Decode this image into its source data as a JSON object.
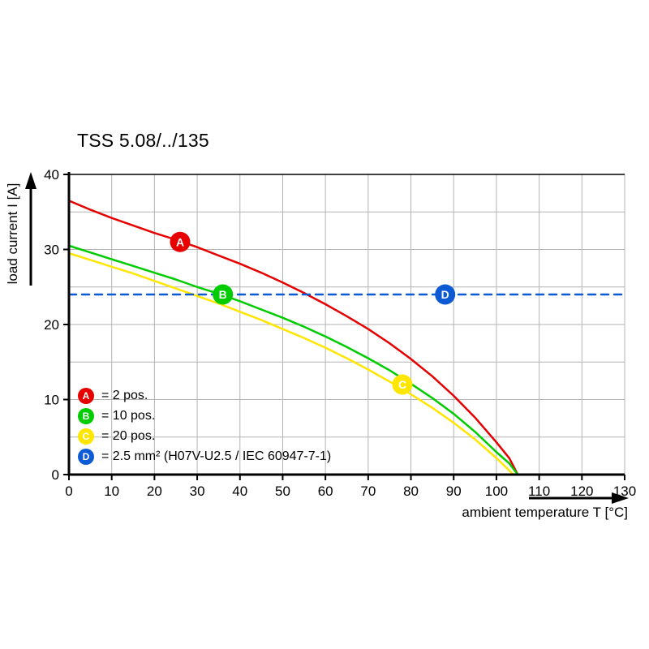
{
  "chart_data": {
    "type": "line",
    "title": "TSS 5.08/../135",
    "xlabel": "ambient temperature T [°C]",
    "ylabel": "load current I [A]",
    "xlim": [
      0,
      130
    ],
    "ylim": [
      0,
      40
    ],
    "x_ticks": [
      0,
      10,
      20,
      30,
      40,
      50,
      60,
      70,
      80,
      90,
      100,
      110,
      120,
      130
    ],
    "y_ticks": [
      0,
      10,
      20,
      30,
      40
    ],
    "x_grid": [
      10,
      20,
      30,
      40,
      50,
      60,
      70,
      80,
      90,
      100,
      110,
      120,
      130
    ],
    "y_grid": [
      5,
      10,
      15,
      20,
      25,
      30,
      35
    ],
    "grid": true,
    "legend_position": "bottom-left-inside",
    "colors": {
      "grid": "#b3b3b3",
      "axis": "#000000",
      "background": "#ffffff"
    },
    "series": [
      {
        "name": "A",
        "legend": "= 2 pos.",
        "color": "#e60000",
        "dashed": false,
        "marker": {
          "x": 26,
          "y": 31
        },
        "points": [
          [
            0,
            36.5
          ],
          [
            5,
            35.3
          ],
          [
            10,
            34.2
          ],
          [
            15,
            33.2
          ],
          [
            20,
            32.2
          ],
          [
            25,
            31.3
          ],
          [
            30,
            30.3
          ],
          [
            35,
            29.2
          ],
          [
            40,
            28.1
          ],
          [
            45,
            26.9
          ],
          [
            50,
            25.6
          ],
          [
            55,
            24.2
          ],
          [
            60,
            22.7
          ],
          [
            65,
            21.1
          ],
          [
            70,
            19.4
          ],
          [
            75,
            17.5
          ],
          [
            80,
            15.4
          ],
          [
            85,
            13.1
          ],
          [
            90,
            10.5
          ],
          [
            95,
            7.6
          ],
          [
            100,
            4.3
          ],
          [
            103,
            2.2
          ],
          [
            105,
            0
          ]
        ]
      },
      {
        "name": "B",
        "legend": "= 10 pos.",
        "color": "#00cc00",
        "dashed": false,
        "marker": {
          "x": 36,
          "y": 24
        },
        "points": [
          [
            0,
            30.5
          ],
          [
            5,
            29.6
          ],
          [
            10,
            28.7
          ],
          [
            15,
            27.8
          ],
          [
            20,
            26.9
          ],
          [
            25,
            26.0
          ],
          [
            30,
            25.0
          ],
          [
            35,
            24.1
          ],
          [
            40,
            23.1
          ],
          [
            45,
            22.0
          ],
          [
            50,
            20.9
          ],
          [
            55,
            19.7
          ],
          [
            60,
            18.4
          ],
          [
            65,
            17.0
          ],
          [
            70,
            15.5
          ],
          [
            75,
            13.9
          ],
          [
            80,
            12.1
          ],
          [
            85,
            10.2
          ],
          [
            90,
            8.1
          ],
          [
            95,
            5.7
          ],
          [
            100,
            3.0
          ],
          [
            103,
            1.5
          ],
          [
            105,
            0
          ]
        ]
      },
      {
        "name": "C",
        "legend": "= 20 pos.",
        "color": "#ffe600",
        "dashed": false,
        "marker": {
          "x": 78,
          "y": 12
        },
        "points": [
          [
            0,
            29.5
          ],
          [
            5,
            28.6
          ],
          [
            10,
            27.7
          ],
          [
            15,
            26.8
          ],
          [
            20,
            25.8
          ],
          [
            25,
            24.8
          ],
          [
            30,
            23.8
          ],
          [
            35,
            22.8
          ],
          [
            40,
            21.7
          ],
          [
            45,
            20.6
          ],
          [
            50,
            19.4
          ],
          [
            55,
            18.2
          ],
          [
            60,
            16.9
          ],
          [
            65,
            15.5
          ],
          [
            70,
            14.0
          ],
          [
            75,
            12.4
          ],
          [
            80,
            10.7
          ],
          [
            85,
            8.9
          ],
          [
            90,
            6.9
          ],
          [
            95,
            4.7
          ],
          [
            100,
            2.2
          ],
          [
            104,
            0
          ]
        ]
      },
      {
        "name": "D",
        "legend": "= 2.5 mm² (H07V-U2.5 / IEC 60947-7-1)",
        "color": "#0d5bd4",
        "dashed": true,
        "marker": {
          "x": 88,
          "y": 24
        },
        "points": [
          [
            0,
            24
          ],
          [
            130,
            24
          ]
        ]
      }
    ]
  }
}
